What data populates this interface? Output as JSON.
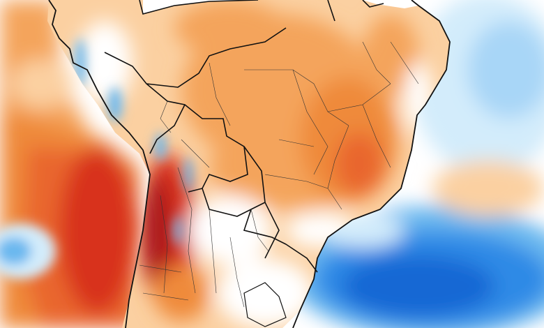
{
  "map": {
    "kind": "temperature anomaly map",
    "region": "South America",
    "palette": {
      "ocean_bg": "#ffffff",
      "light_orange": "#fbd0a1",
      "orange": "#f4a45c",
      "deep_orange": "#ef8a3a",
      "red_orange": "#e9662e",
      "red": "#d8321e",
      "dark_red": "#a8141a",
      "pale_blue": "#d3ecfb",
      "blue": "#6bb8ef",
      "deep_blue": "#2d8ae6",
      "navy": "#1467d4",
      "border": "#111111",
      "state_border": "#333333"
    },
    "icons": [
      "continent-outline",
      "country-borders",
      "state-borders"
    ]
  }
}
